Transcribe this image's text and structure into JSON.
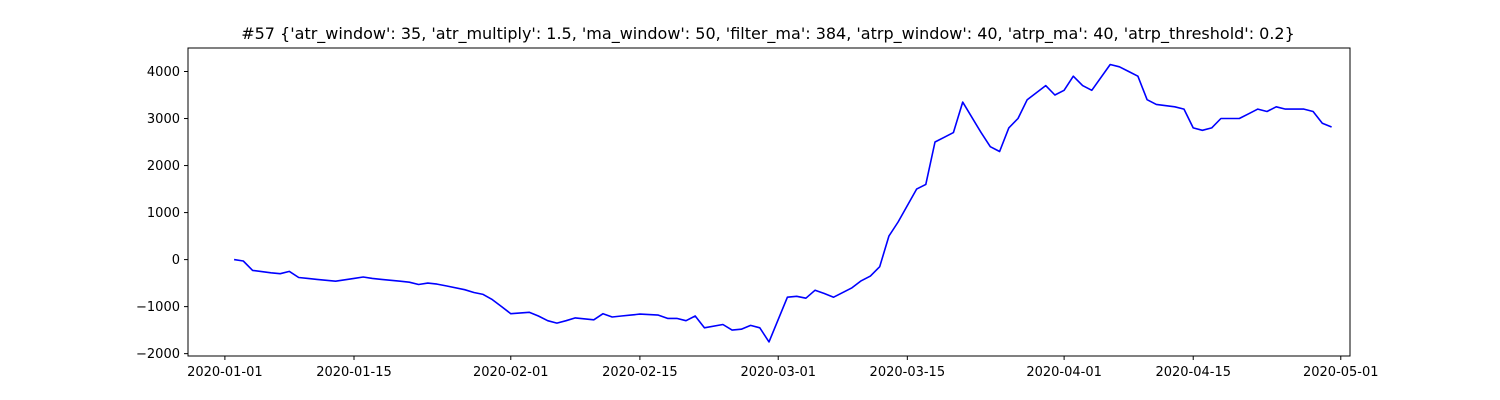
{
  "chart_data": {
    "type": "line",
    "title": "#57 {'atr_window': 35, 'atr_multiply': 1.5, 'ma_window': 50, 'filter_ma': 384, 'atrp_window': 40, 'atrp_ma': 40, 'atrp_threshold': 0.2}",
    "xlabel": "",
    "ylabel": "",
    "x_axis_type": "date",
    "xlim": [
      "2019-12-28",
      "2020-05-02"
    ],
    "ylim": [
      -2050,
      4500
    ],
    "x_ticks": [
      "2020-01-01",
      "2020-01-15",
      "2020-02-01",
      "2020-02-15",
      "2020-03-01",
      "2020-03-15",
      "2020-04-01",
      "2020-04-15",
      "2020-05-01"
    ],
    "y_ticks": [
      -2000,
      -1000,
      0,
      1000,
      2000,
      3000,
      4000
    ],
    "grid": false,
    "line_color": "#0000ff",
    "series": [
      {
        "x": [
          "2020-01-02",
          "2020-01-03",
          "2020-01-04",
          "2020-01-06",
          "2020-01-07",
          "2020-01-08",
          "2020-01-09",
          "2020-01-10",
          "2020-01-11",
          "2020-01-13",
          "2020-01-14",
          "2020-01-15",
          "2020-01-16",
          "2020-01-17",
          "2020-01-18",
          "2020-01-20",
          "2020-01-21",
          "2020-01-22",
          "2020-01-23",
          "2020-01-24",
          "2020-01-25",
          "2020-01-27",
          "2020-01-28",
          "2020-01-29",
          "2020-01-30",
          "2020-01-31",
          "2020-02-01",
          "2020-02-03",
          "2020-02-04",
          "2020-02-05",
          "2020-02-06",
          "2020-02-07",
          "2020-02-08",
          "2020-02-10",
          "2020-02-11",
          "2020-02-12",
          "2020-02-13",
          "2020-02-14",
          "2020-02-15",
          "2020-02-17",
          "2020-02-18",
          "2020-02-19",
          "2020-02-20",
          "2020-02-21",
          "2020-02-22",
          "2020-02-24",
          "2020-02-25",
          "2020-02-26",
          "2020-02-27",
          "2020-02-28",
          "2020-02-29",
          "2020-03-02",
          "2020-03-03",
          "2020-03-04",
          "2020-03-05",
          "2020-03-06",
          "2020-03-07",
          "2020-03-09",
          "2020-03-10",
          "2020-03-11",
          "2020-03-12",
          "2020-03-13",
          "2020-03-14",
          "2020-03-16",
          "2020-03-17",
          "2020-03-18",
          "2020-03-19",
          "2020-03-20",
          "2020-03-21",
          "2020-03-23",
          "2020-03-24",
          "2020-03-25",
          "2020-03-26",
          "2020-03-27",
          "2020-03-28",
          "2020-03-30",
          "2020-03-31",
          "2020-04-01",
          "2020-04-02",
          "2020-04-03",
          "2020-04-04",
          "2020-04-06",
          "2020-04-07",
          "2020-04-08",
          "2020-04-09",
          "2020-04-10",
          "2020-04-11",
          "2020-04-13",
          "2020-04-14",
          "2020-04-15",
          "2020-04-16",
          "2020-04-17",
          "2020-04-18",
          "2020-04-20",
          "2020-04-21",
          "2020-04-22",
          "2020-04-23",
          "2020-04-24",
          "2020-04-25",
          "2020-04-27",
          "2020-04-28",
          "2020-04-29",
          "2020-04-30"
        ],
        "values": [
          0,
          -30,
          -230,
          -280,
          -300,
          -250,
          -380,
          -400,
          -420,
          -460,
          -430,
          -400,
          -370,
          -400,
          -420,
          -460,
          -480,
          -530,
          -500,
          -520,
          -560,
          -640,
          -700,
          -740,
          -850,
          -1000,
          -1150,
          -1120,
          -1200,
          -1300,
          -1350,
          -1300,
          -1240,
          -1280,
          -1150,
          -1220,
          -1200,
          -1180,
          -1160,
          -1180,
          -1250,
          -1250,
          -1300,
          -1200,
          -1450,
          -1380,
          -1500,
          -1480,
          -1400,
          -1450,
          -1750,
          -800,
          -780,
          -820,
          -650,
          -720,
          -800,
          -600,
          -450,
          -350,
          -150,
          500,
          800,
          1500,
          1600,
          2500,
          2600,
          2700,
          3350,
          2700,
          2400,
          2300,
          2800,
          3000,
          3400,
          3700,
          3500,
          3600,
          3900,
          3700,
          3600,
          4150,
          4100,
          4000,
          3900,
          3400,
          3300,
          3250,
          3200,
          2800,
          2750,
          2800,
          3000,
          3000,
          3100,
          3200,
          3150,
          3250,
          3200,
          3200,
          3150,
          2900,
          2820
        ]
      }
    ]
  }
}
